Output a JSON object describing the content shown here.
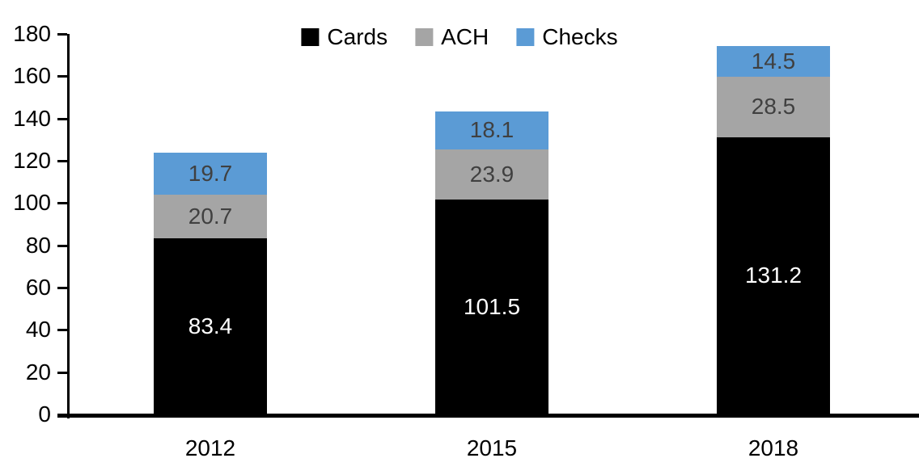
{
  "chart_data": {
    "type": "bar",
    "stacked": true,
    "title": "",
    "categories": [
      "2012",
      "2015",
      "2018"
    ],
    "series": [
      {
        "name": "Cards",
        "values": [
          83.4,
          101.5,
          131.2
        ],
        "color": "#000000",
        "label_color": "#FFFFFF"
      },
      {
        "name": "ACH",
        "values": [
          20.7,
          23.9,
          28.5
        ],
        "color": "#A5A5A5",
        "label_color": "#404040"
      },
      {
        "name": "Checks",
        "values": [
          19.7,
          18.1,
          14.5
        ],
        "color": "#5B9BD5",
        "label_color": "#404040"
      }
    ],
    "ylim": [
      0,
      180
    ],
    "ytick_interval": 20,
    "yticks": [
      0,
      20,
      40,
      60,
      80,
      100,
      120,
      140,
      160,
      180
    ],
    "grid": false,
    "legend_position": "top",
    "axis_color": "#000000"
  }
}
